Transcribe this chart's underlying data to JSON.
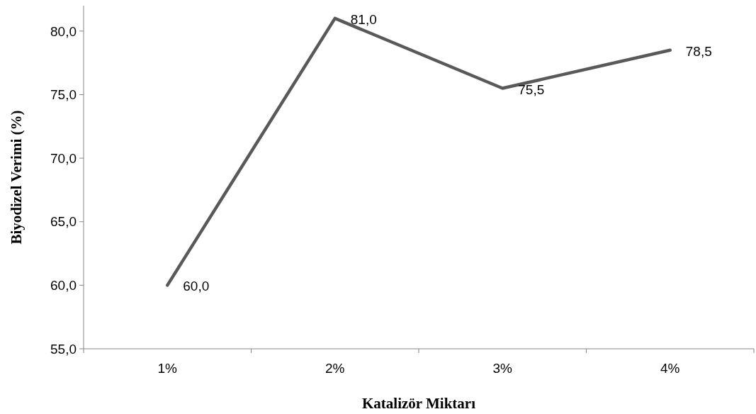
{
  "chart_data": {
    "type": "line",
    "xlabel": "Katalizör Miktarı",
    "ylabel": "Biyodizel Verimi (%)",
    "categories": [
      "1%",
      "2%",
      "3%",
      "4%"
    ],
    "series": [
      {
        "color": "#595959",
        "values": [
          60.0,
          81.0,
          75.5,
          78.5
        ],
        "value_labels": [
          "60,0",
          "81,0",
          "75,5",
          "78,5"
        ]
      }
    ],
    "ylim": [
      55,
      82
    ],
    "yticks": [
      {
        "value": 55,
        "label": "55,0"
      },
      {
        "value": 60,
        "label": "60,0"
      },
      {
        "value": 65,
        "label": "65,0"
      },
      {
        "value": 70,
        "label": "70,0"
      },
      {
        "value": 75,
        "label": "75,0"
      },
      {
        "value": 80,
        "label": "80,0"
      }
    ],
    "grid": false,
    "marker": "none",
    "line_style": "solid"
  }
}
